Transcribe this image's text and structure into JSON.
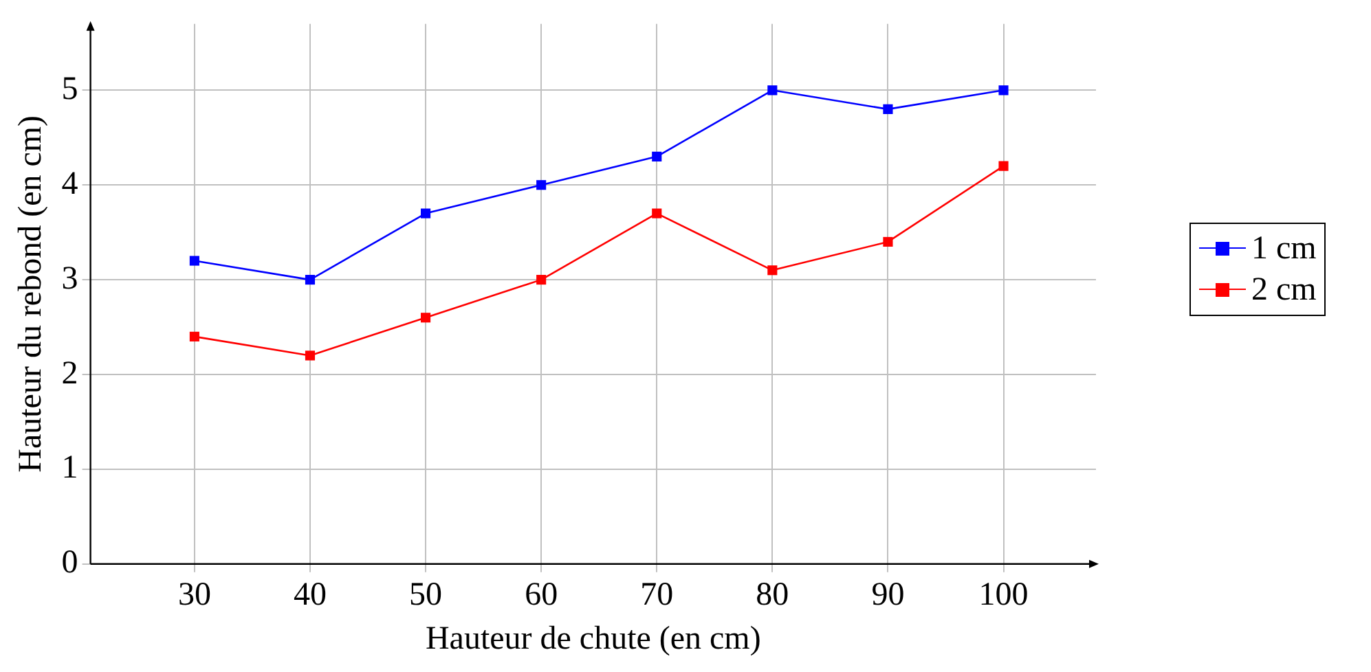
{
  "chart_data": {
    "type": "line",
    "xlabel": "Hauteur de chute (en cm)",
    "ylabel": "Hauteur du rebond (en cm)",
    "x": [
      30,
      40,
      50,
      60,
      70,
      80,
      90,
      100
    ],
    "series": [
      {
        "name": "1 cm",
        "color": "#0000ff",
        "values": [
          3.2,
          3.0,
          3.7,
          4.0,
          4.3,
          5.0,
          4.8,
          5.0
        ]
      },
      {
        "name": "2 cm",
        "color": "#ff0000",
        "values": [
          2.4,
          2.2,
          2.6,
          3.0,
          3.7,
          3.1,
          3.4,
          4.2
        ]
      }
    ],
    "xlim": [
      21,
      108
    ],
    "xticks": [
      30,
      40,
      50,
      60,
      70,
      80,
      90,
      100
    ],
    "ylim": [
      0,
      5.7
    ],
    "yticks": [
      0,
      1,
      2,
      3,
      4,
      5
    ],
    "grid": true,
    "legend": "right",
    "marker": "square",
    "line_style": "solid"
  }
}
